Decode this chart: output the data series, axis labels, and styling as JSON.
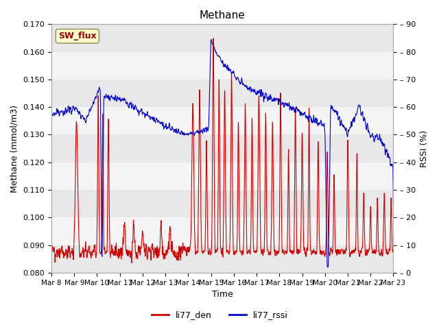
{
  "title": "Methane",
  "xlabel": "Time",
  "ylabel_left": "Methane (mmol/m3)",
  "ylabel_right": "RSSI (%)",
  "ylim_left": [
    0.08,
    0.17
  ],
  "ylim_right": [
    0,
    90
  ],
  "yticks_left": [
    0.08,
    0.09,
    0.1,
    0.11,
    0.12,
    0.13,
    0.14,
    0.15,
    0.16,
    0.17
  ],
  "yticks_right": [
    0,
    10,
    20,
    30,
    40,
    50,
    60,
    70,
    80,
    90
  ],
  "xtick_labels": [
    "Mar 8",
    "Mar 9",
    "Mar 10",
    "Mar 11",
    "Mar 12",
    "Mar 13",
    "Mar 14",
    "Mar 15",
    "Mar 16",
    "Mar 17",
    "Mar 18",
    "Mar 19",
    "Mar 20",
    "Mar 21",
    "Mar 22",
    "Mar 23"
  ],
  "color_den": "#cc0000",
  "color_rssi": "#0000cc",
  "legend_labels": [
    "li77_den",
    "li77_rssi"
  ],
  "sw_flux_box_color": "#ffffcc",
  "sw_flux_text_color": "#990000",
  "sw_flux_border_color": "#999966",
  "background_color": "#ffffff",
  "grid_band_colors": [
    "#e8e8e8",
    "#f5f5f5"
  ],
  "linewidth": 0.8
}
